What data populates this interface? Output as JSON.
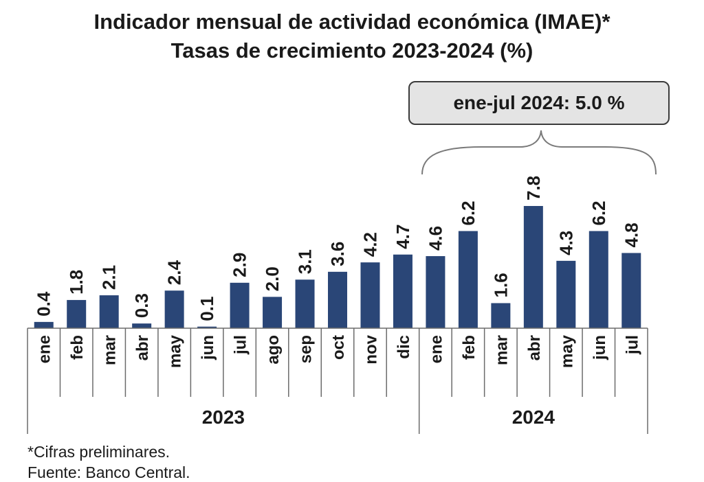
{
  "chart_data": {
    "type": "bar",
    "title": "Indicador mensual de actividad económica (IMAE)*",
    "subtitle": "Tasas de crecimiento 2023-2024 (%)",
    "annotation": "ene-jul 2024: 5.0 %",
    "categories": [
      "ene",
      "feb",
      "mar",
      "abr",
      "may",
      "jun",
      "jul",
      "ago",
      "sep",
      "oct",
      "nov",
      "dic",
      "ene",
      "feb",
      "mar",
      "abr",
      "may",
      "jun",
      "jul"
    ],
    "values": [
      0.4,
      1.8,
      2.1,
      0.3,
      2.4,
      0.1,
      2.9,
      2.0,
      3.1,
      3.6,
      4.2,
      4.7,
      4.6,
      6.2,
      1.6,
      7.8,
      4.3,
      6.2,
      4.8
    ],
    "value_labels": [
      "0.4",
      "1.8",
      "2.1",
      "0.3",
      "2.4",
      "0.1",
      "2.9",
      "2.0",
      "3.1",
      "3.6",
      "4.2",
      "4.7",
      "4.6",
      "6.2",
      "1.6",
      "7.8",
      "4.3",
      "6.2",
      "4.8"
    ],
    "groups": [
      {
        "label": "2023",
        "count": 12
      },
      {
        "label": "2024",
        "count": 7
      }
    ],
    "ylim": [
      0,
      7.8
    ],
    "bar_color": "#2a4677",
    "grid": false,
    "legend": "none"
  },
  "notes": {
    "preliminary": "*Cifras preliminares.",
    "source": "Fuente: Banco Central."
  }
}
